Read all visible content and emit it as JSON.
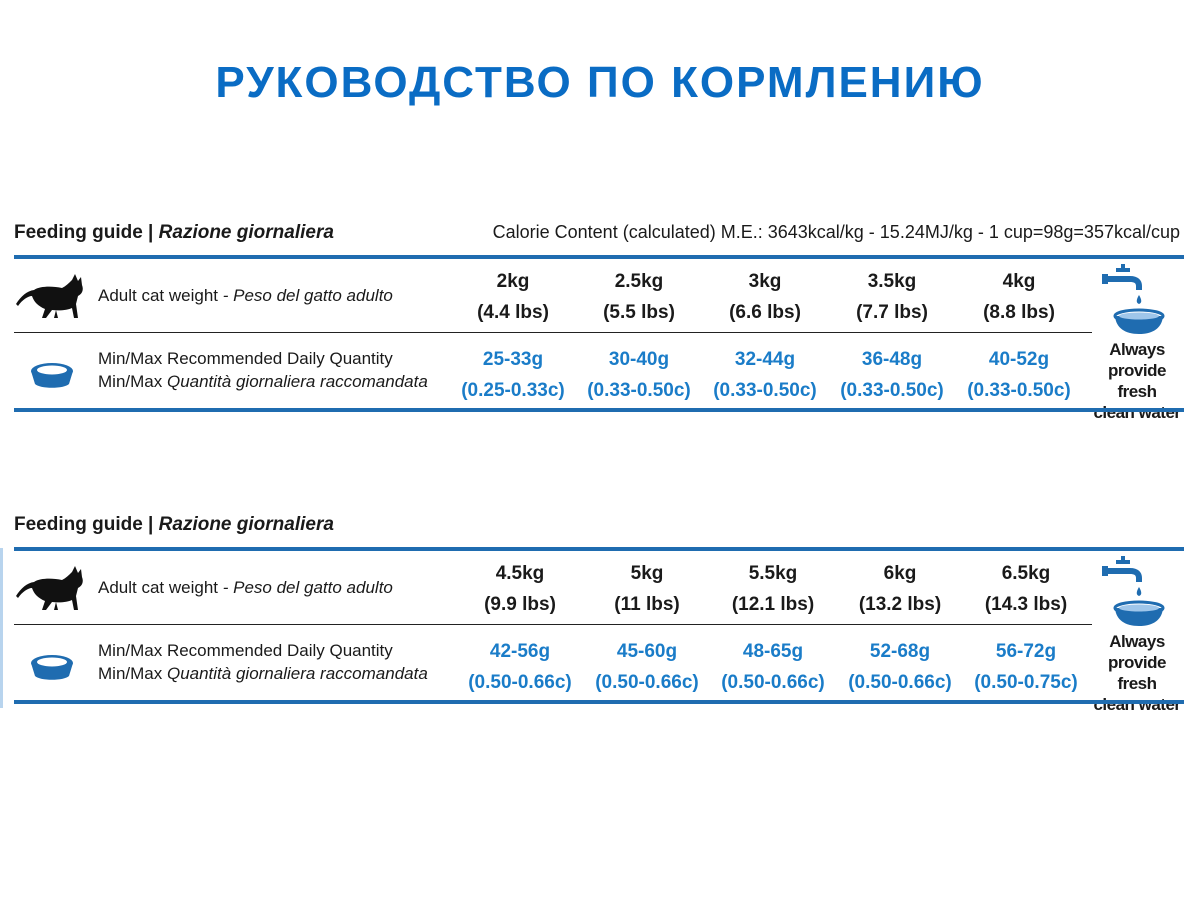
{
  "page_title": "РУКОВОДСТВО ПО КОРМЛЕНИЮ",
  "guides": [
    {
      "heading": "Feeding guide |",
      "heading_italic": "Razione giornaliera",
      "calorie_note": "Calorie Content (calculated) M.E.: 3643kcal/kg - 15.24MJ/kg - 1 cup=98g=357kcal/cup",
      "weight_label": "Adult cat weight",
      "weight_label_italic": "- Peso del gatto adulto",
      "qty_label_1": "Min/Max Recommended Daily Quantity",
      "qty_label_2_prefix": "Min/Max",
      "qty_label_2_italic": "Quantità giornaliera raccomandata",
      "weights": [
        {
          "kg": "2kg",
          "lbs": "(4.4 lbs)"
        },
        {
          "kg": "2.5kg",
          "lbs": "(5.5 lbs)"
        },
        {
          "kg": "3kg",
          "lbs": "(6.6 lbs)"
        },
        {
          "kg": "3.5kg",
          "lbs": "(7.7 lbs)"
        },
        {
          "kg": "4kg",
          "lbs": "(8.8 lbs)"
        }
      ],
      "quantities": [
        {
          "grams": "25-33g",
          "cups": "(0.25-0.33c)"
        },
        {
          "grams": "30-40g",
          "cups": "(0.33-0.50c)"
        },
        {
          "grams": "32-44g",
          "cups": "(0.33-0.50c)"
        },
        {
          "grams": "36-48g",
          "cups": "(0.33-0.50c)"
        },
        {
          "grams": "40-52g",
          "cups": "(0.33-0.50c)"
        }
      ],
      "water_lines": [
        "Always",
        "provide fresh",
        "clean water"
      ]
    },
    {
      "heading": "Feeding guide |",
      "heading_italic": "Razione giornaliera",
      "weight_label": "Adult cat weight",
      "weight_label_italic": "- Peso del gatto adulto",
      "qty_label_1": "Min/Max Recommended Daily Quantity",
      "qty_label_2_prefix": "Min/Max",
      "qty_label_2_italic": "Quantità giornaliera raccomandata",
      "weights": [
        {
          "kg": "4.5kg",
          "lbs": "(9.9 lbs)"
        },
        {
          "kg": "5kg",
          "lbs": "(11 lbs)"
        },
        {
          "kg": "5.5kg",
          "lbs": "(12.1 lbs)"
        },
        {
          "kg": "6kg",
          "lbs": "(13.2 lbs)"
        },
        {
          "kg": "6.5kg",
          "lbs": "(14.3 lbs)"
        }
      ],
      "quantities": [
        {
          "grams": "42-56g",
          "cups": "(0.50-0.66c)"
        },
        {
          "grams": "45-60g",
          "cups": "(0.50-0.66c)"
        },
        {
          "grams": "48-65g",
          "cups": "(0.50-0.66c)"
        },
        {
          "grams": "52-68g",
          "cups": "(0.50-0.66c)"
        },
        {
          "grams": "56-72g",
          "cups": "(0.50-0.75c)"
        }
      ],
      "water_lines": [
        "Always",
        "provide fresh",
        "clean water"
      ]
    }
  ],
  "icons": {
    "cat": "cat-silhouette-icon",
    "bowl": "food-bowl-icon",
    "water": "water-tap-bowl-icon"
  },
  "colors": {
    "title": "#0a6cc4",
    "rule": "#1f6cb0",
    "quantity": "#1a7cc8"
  }
}
